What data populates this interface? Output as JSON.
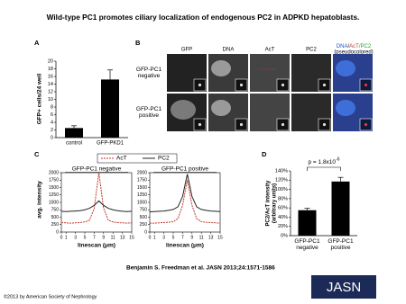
{
  "title": "Wild-type PC1 promotes ciliary localization of endogenous PC2 in ADPKD hepatoblasts.",
  "panel_labels": [
    "A",
    "B",
    "C",
    "D"
  ],
  "panel_b": {
    "columns": [
      "GFP",
      "DNA",
      "AcT",
      "PC2"
    ],
    "merge_parts": [
      "DNA",
      "/",
      "AcT",
      "/PC2"
    ],
    "merge_note": "(pseudocolored)",
    "rows": [
      "GFP-PC1 negative",
      "GFP-PC1 positive"
    ]
  },
  "chart_data": [
    {
      "type": "bar",
      "categories": [
        "control",
        "GFP-PKD1"
      ],
      "values": [
        2.5,
        15.2
      ],
      "errors": [
        0.6,
        2.5
      ],
      "color": "#000000",
      "ylabel": "GFP+ cells/24 well",
      "ylim": [
        0,
        20
      ],
      "yticks": [
        0,
        2,
        4,
        6,
        8,
        10,
        12,
        14,
        16,
        18,
        20
      ]
    },
    {
      "type": "line",
      "series": [
        {
          "name": "AcT",
          "color": "#c0392b",
          "dash": true
        },
        {
          "name": "PC2",
          "color": "#222222",
          "dash": false
        }
      ],
      "x": [
        0,
        1,
        2,
        3,
        4,
        5,
        6,
        7,
        8,
        9,
        10,
        11,
        12,
        13,
        14,
        15
      ],
      "xlim": [
        0,
        15
      ],
      "xticks": [
        0,
        1,
        3,
        5,
        7,
        9,
        11,
        13,
        15
      ],
      "ylim": [
        0,
        2000
      ],
      "yticks": [
        0,
        250,
        500,
        750,
        1000,
        1250,
        1500,
        1750,
        2000
      ],
      "xlabel": "linescan (μm)",
      "ylabel": "avg. intensity",
      "panels": [
        {
          "title": "GFP-PC1 negative",
          "values": [
            [
              320,
              310,
              300,
              310,
              320,
              340,
              400,
              800,
              2000,
              800,
              400,
              340,
              320,
              310,
              300,
              310
            ],
            [
              700,
              690,
              700,
              710,
              720,
              750,
              800,
              900,
              1050,
              900,
              800,
              750,
              720,
              700,
              690,
              700
            ]
          ]
        },
        {
          "title": "GFP-PC1 positive",
          "values": [
            [
              300,
              300,
              310,
              320,
              330,
              350,
              450,
              900,
              1750,
              900,
              450,
              350,
              330,
              320,
              310,
              300
            ],
            [
              680,
              690,
              700,
              710,
              730,
              760,
              850,
              1200,
              1950,
              1200,
              850,
              760,
              730,
              710,
              700,
              690
            ]
          ]
        }
      ]
    },
    {
      "type": "bar",
      "categories": [
        "GFP-PC1 negative",
        "GFP-PC1 positive"
      ],
      "values": [
        55,
        117
      ],
      "errors": [
        4,
        9
      ],
      "color": "#000000",
      "ylabel": [
        "PC2/AcT intensity",
        "(arbitrary units)"
      ],
      "annotation": {
        "text": "p = 1.8x10",
        "exponent": "-6"
      },
      "ylim": [
        0,
        140
      ],
      "yticks": [
        {
          "value": 0,
          "label": "0%"
        },
        {
          "value": 20,
          "label": "20%"
        },
        {
          "value": 40,
          "label": "40%"
        },
        {
          "value": 60,
          "label": "60%"
        },
        {
          "value": 80,
          "label": "80%"
        },
        {
          "value": 100,
          "label": "100%"
        },
        {
          "value": 120,
          "label": "120%"
        },
        {
          "value": 140,
          "label": "140%"
        }
      ]
    }
  ],
  "citation": "Benjamin S. Freedman et al. JASN 2013;24:1571-1586",
  "copyright": "©2013 by American Society of Nephrology",
  "logo": "JASN"
}
